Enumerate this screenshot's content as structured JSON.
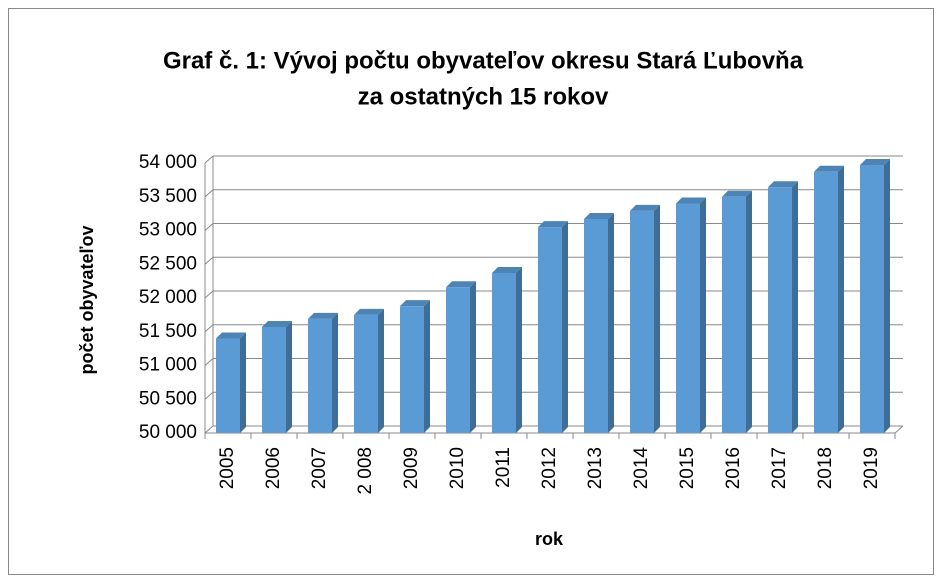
{
  "chart_data": {
    "type": "bar3d",
    "title": [
      "Graf č. 1: Vývoj počtu obyvateľov okresu Stará Ľubovňa",
      "za ostatných 15 rokov"
    ],
    "x_label": "rok",
    "y_label": "počet obyvateľov",
    "categories": [
      "2005",
      "2006",
      "2007",
      "2 008",
      "2009",
      "2010",
      "2011",
      "2012",
      "2013",
      "2014",
      "2015",
      "2016",
      "2017",
      "2018",
      "2019"
    ],
    "values": [
      51400,
      51570,
      51690,
      51750,
      51880,
      52160,
      52370,
      53050,
      53170,
      53290,
      53400,
      53500,
      53640,
      53870,
      53970
    ],
    "color": "#5b9bd5",
    "ylim": [
      50000,
      54000
    ],
    "yticks": [
      {
        "value": 50000,
        "label": "50 000"
      },
      {
        "value": 50500,
        "label": "50 500"
      },
      {
        "value": 51000,
        "label": "51 000"
      },
      {
        "value": 51500,
        "label": "51 500"
      },
      {
        "value": 52000,
        "label": "52 000"
      },
      {
        "value": 52500,
        "label": "52 500"
      },
      {
        "value": 53000,
        "label": "53 000"
      },
      {
        "value": 53500,
        "label": "53 500"
      },
      {
        "value": 54000,
        "label": "54 000"
      }
    ],
    "grid": true
  }
}
